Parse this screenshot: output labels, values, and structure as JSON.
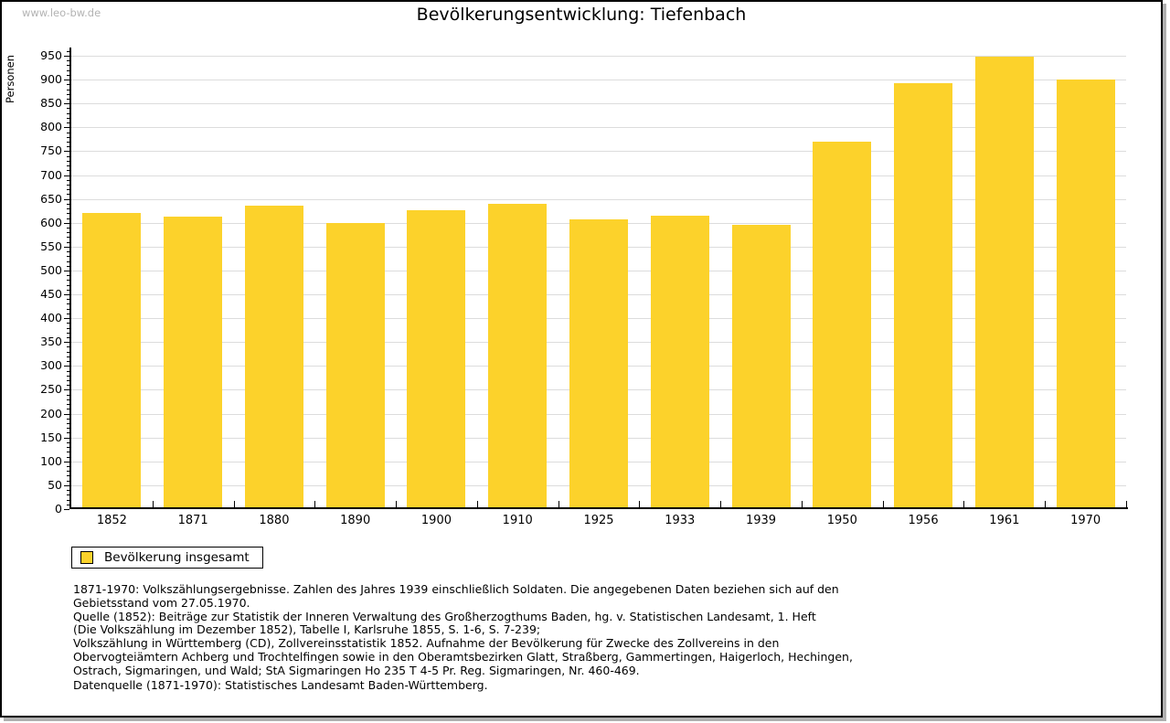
{
  "watermark": "www.leo-bw.de",
  "title": "Bevölkerungsentwicklung: Tiefenbach",
  "legend": {
    "label": "Bevölkerung insgesamt",
    "swatch_color": "#FCD22B"
  },
  "footnotes": [
    "1871-1970: Volkszählungsergebnisse. Zahlen des Jahres 1939 einschließlich Soldaten. Die angegebenen Daten beziehen sich auf den",
    "Gebietsstand vom 27.05.1970.",
    "Quelle (1852): Beiträge zur Statistik der Inneren Verwaltung des Großherzogthums Baden, hg. v. Statistischen Landesamt, 1. Heft",
    "(Die Volkszählung im Dezember 1852), Tabelle I, Karlsruhe 1855, S. 1-6, S. 7-239;",
    "Volkszählung in Württemberg (CD), Zollvereinsstatistik 1852. Aufnahme der Bevölkerung für Zwecke des Zollvereins in den",
    "Obervogteiämtern Achberg und Trochtelfingen sowie in den Oberamtsbezirken Glatt, Straßberg, Gammertingen, Haigerloch, Hechingen,",
    "Ostrach, Sigmaringen, und Wald; StA Sigmaringen Ho 235 T 4-5 Pr. Reg. Sigmaringen, Nr. 460-469."
  ],
  "datasource_note": "Datenquelle (1871-1970): Statistisches Landesamt Baden-Württemberg.",
  "chart_data": {
    "type": "bar",
    "title": "Bevölkerungsentwicklung: Tiefenbach",
    "xlabel": "",
    "ylabel": "Personen",
    "series_name": "Bevölkerung insgesamt",
    "categories": [
      "1852",
      "1871",
      "1880",
      "1890",
      "1900",
      "1910",
      "1925",
      "1933",
      "1939",
      "1950",
      "1956",
      "1961",
      "1970"
    ],
    "values": [
      620,
      613,
      635,
      600,
      627,
      640,
      607,
      614,
      596,
      770,
      893,
      948,
      900
    ],
    "ylim": [
      0,
      950
    ],
    "ytick_step": 50,
    "ytick_minor_step": 10,
    "grid": true,
    "grid_color": "#dcdcdc",
    "bar_color": "#FCD22B",
    "legend_position": "bottom-left"
  }
}
